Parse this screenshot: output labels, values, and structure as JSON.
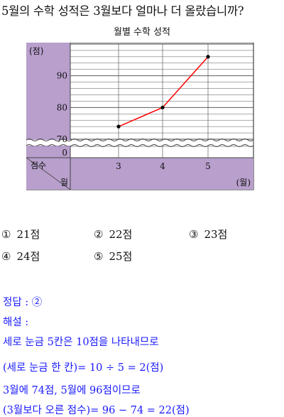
{
  "question": "5월의 수학 성적은 3월보다 얼마나 더 올랐습니까?",
  "chart_data": {
    "type": "line",
    "title": "월별 수학 성적",
    "unit_y": "(점)",
    "unit_x": "(월)",
    "corner_top": "점수",
    "corner_bottom": "월",
    "x": [
      3,
      4,
      5
    ],
    "x_ticks": [
      "3",
      "4",
      "5"
    ],
    "y_ticks": [
      "70",
      "80",
      "90"
    ],
    "zero_label": "0",
    "values": [
      74,
      80,
      96
    ],
    "ylim": [
      70,
      100
    ],
    "axis_break": true,
    "grid": true,
    "colors": {
      "line": "#ff0000",
      "axis_panel": "#b89fcc",
      "grid": "#444444"
    }
  },
  "choices": [
    {
      "num": "①",
      "text": "21점"
    },
    {
      "num": "②",
      "text": "22점"
    },
    {
      "num": "③",
      "text": "23점"
    },
    {
      "num": "④",
      "text": "24점"
    },
    {
      "num": "⑤",
      "text": "25점"
    }
  ],
  "solution": {
    "answer": "정답 : ②",
    "heading": "해설 :",
    "lines": [
      "세로 눈금 5칸은 10점을 나타내므로",
      "(세로 눈금 한 칸)= 10 ÷ 5 = 2(점)",
      "3월에 74점, 5월에 96점이므로",
      "(3월보다 오른 점수)= 96 − 74 = 22(점)"
    ]
  }
}
